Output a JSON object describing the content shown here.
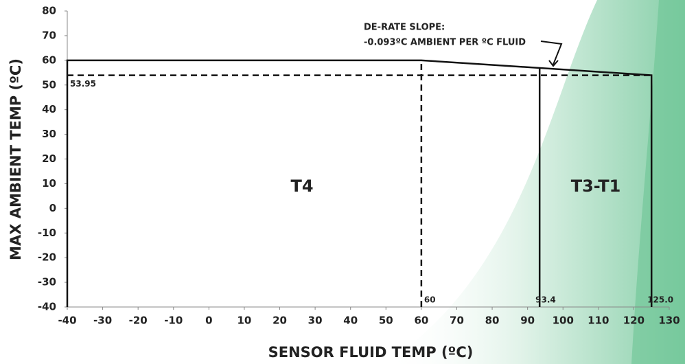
{
  "chart_data": {
    "type": "line",
    "x_label": "SENSOR FLUID TEMP (ºC)",
    "y_label": "MAX AMBIENT TEMP (ºC)",
    "series": [
      {
        "color": "#111111",
        "dashed": false,
        "x": [
          -40,
          -40,
          60,
          125,
          125
        ],
        "values": [
          -40,
          60,
          60,
          53.95,
          -40
        ]
      },
      {
        "color": "#111111",
        "dashed": false,
        "x": [
          93.4,
          93.4
        ],
        "values": [
          -40,
          56.9
        ]
      },
      {
        "color": "#111111",
        "dashed": true,
        "x": [
          -40,
          125
        ],
        "values": [
          53.95,
          53.95
        ]
      },
      {
        "color": "#111111",
        "dashed": true,
        "x": [
          60,
          60
        ],
        "values": [
          -40,
          60
        ]
      }
    ],
    "xmarks": [
      {
        "value": 60,
        "label": "60"
      },
      {
        "value": 93.4,
        "label": "93.4"
      },
      {
        "value": 125,
        "label": "125.0"
      }
    ],
    "ymarks": [
      {
        "value": 53.95,
        "label": "53.95"
      }
    ],
    "regions": [
      "T4",
      "T3-T1"
    ],
    "annotation": [
      "DE-RATE SLOPE:",
      "-0.093ºC AMBIENT PER ºC FLUID"
    ],
    "xlim": [
      -40,
      130
    ],
    "xticks": [
      -40,
      -30,
      -20,
      -10,
      0,
      10,
      20,
      30,
      40,
      50,
      60,
      70,
      80,
      90,
      100,
      110,
      120,
      130
    ],
    "ylim": [
      -40,
      80
    ],
    "yticks": [
      -40,
      -30,
      -20,
      -10,
      0,
      10,
      20,
      30,
      40,
      50,
      60,
      70,
      80
    ],
    "grid": false
  }
}
